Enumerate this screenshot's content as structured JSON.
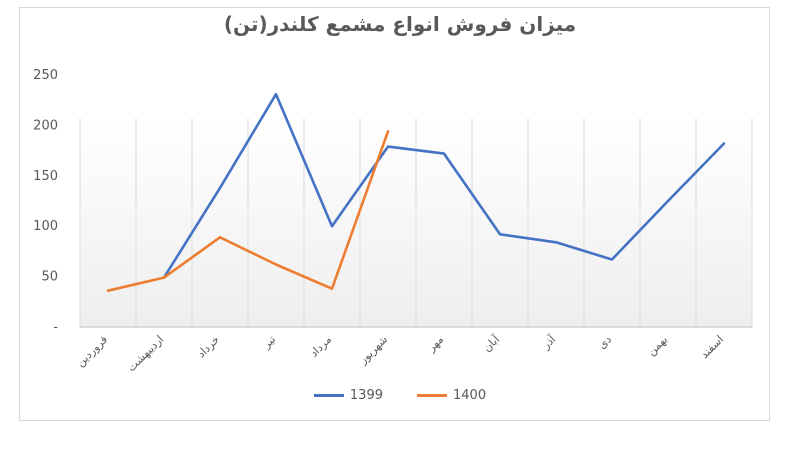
{
  "chart_data": {
    "type": "line",
    "title": "میزان فروش انواع مشمع کلندر(تن)",
    "categories": [
      "فروردین",
      "اردیبهشت",
      "خرداد",
      "تیر",
      "مرداد",
      "شهریور",
      "مهر",
      "آبان",
      "آذر",
      "دی",
      "بهمن",
      "اسفند"
    ],
    "y_ticks": [
      "-",
      "50",
      "100",
      "150",
      "200",
      "250"
    ],
    "ylim": [
      0,
      250
    ],
    "grid": "vertical",
    "legend_position": "bottom",
    "series": [
      {
        "name": "1399",
        "color": "#4472c4",
        "values": [
          null,
          49,
          138,
          231,
          100,
          179,
          172,
          92,
          84,
          67,
          125,
          182
        ]
      },
      {
        "name": "1400",
        "color": "#ed7d31",
        "values": [
          36,
          49,
          89,
          62,
          38,
          194,
          null,
          null,
          null,
          null,
          null,
          null
        ]
      }
    ]
  }
}
